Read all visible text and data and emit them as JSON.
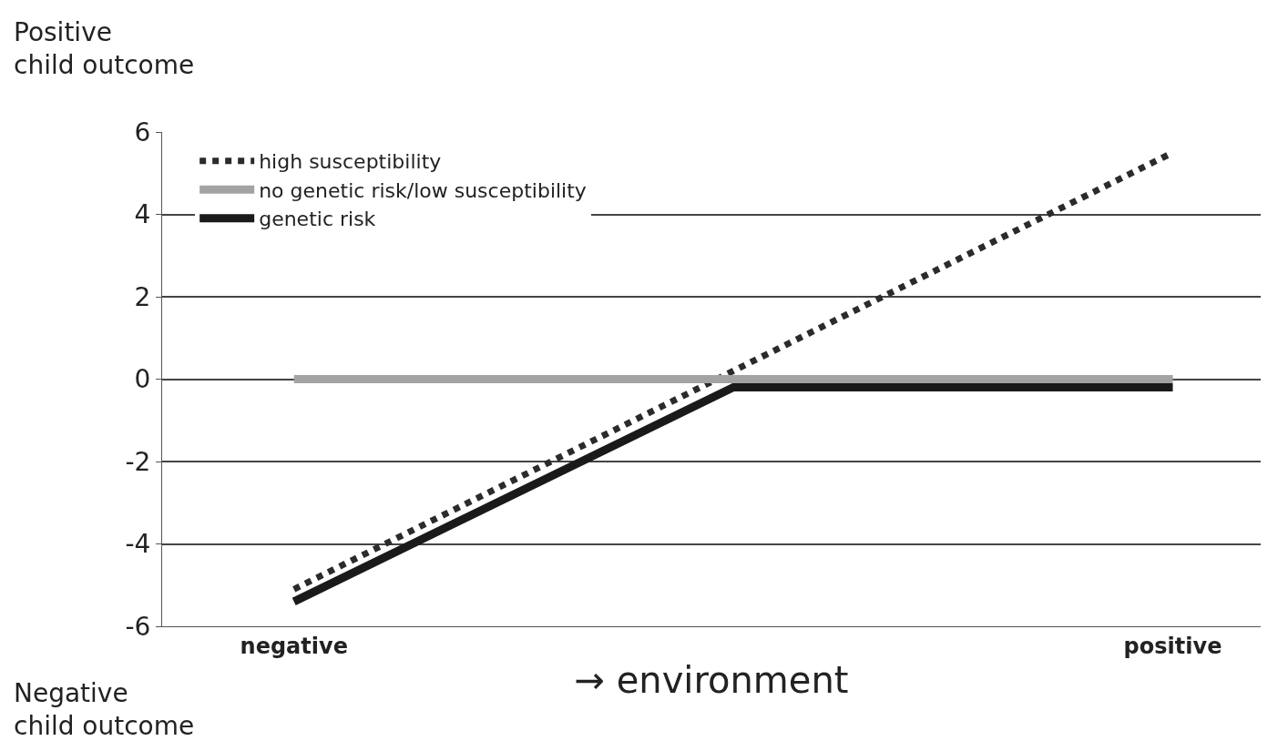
{
  "chart_data": {
    "type": "line",
    "xlabel": "→ environment",
    "annotations": [
      "Positive\nchild outcome",
      "Negative\nchild outcome"
    ],
    "categories": [
      "negative",
      null,
      "positive"
    ],
    "series": [
      {
        "name": "high susceptibility",
        "color": "#2b2b2b",
        "values": [
          -5.1,
          0.2,
          5.5
        ],
        "line_style": "dotted"
      },
      {
        "name": "no genetic risk/low susceptibility",
        "color": "#a3a3a3",
        "values": [
          0,
          0,
          0
        ],
        "line_style": "solid"
      },
      {
        "name": "genetic risk",
        "color": "#1a1a1a",
        "values": [
          -5.4,
          -0.2,
          -0.2
        ],
        "line_style": "solid"
      }
    ],
    "ylim": [
      -6,
      6
    ],
    "yticks": [
      -6,
      -4,
      -2,
      0,
      2,
      4,
      6
    ],
    "grid": "y",
    "legend": "top left",
    "marker": "none"
  }
}
